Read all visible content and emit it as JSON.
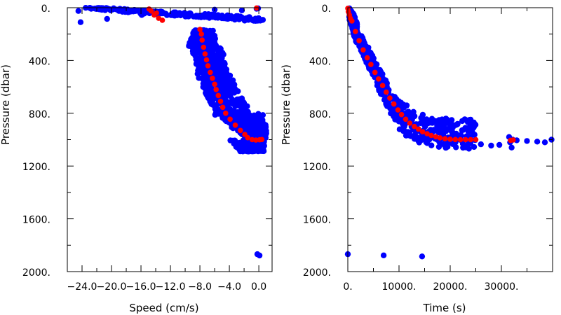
{
  "colors": {
    "blue": "#0000ff",
    "red": "#ff0000",
    "axis": "#000000"
  },
  "chart_data": [
    {
      "type": "scatter",
      "title": "",
      "xlabel": "Speed (cm/s)",
      "ylabel": "Pressure (dbar)",
      "xlim": [
        -26.0,
        1.8
      ],
      "ylim": [
        0,
        2000
      ],
      "y_reversed": true,
      "grid": false,
      "xticks": [
        -24,
        -20,
        -16,
        -12,
        -8,
        -4,
        0
      ],
      "xtick_labels": [
        "−24.0",
        "−20.0",
        "−16.0",
        "−12.0",
        "−8.0",
        "−4.0",
        "0.0"
      ],
      "yticks": [
        0,
        400,
        800,
        1200,
        1600,
        2000
      ],
      "ytick_labels": [
        "0.",
        "400.",
        "800.",
        "1200.",
        "1600.",
        "2000."
      ],
      "series": [
        {
          "color": "#0000ff",
          "bands": [
            {
              "y": [
                0,
                100
              ],
              "x_min": [
                -24.2,
                -21.5,
                -18.0,
                -15.0,
                -10.0,
                -5.0,
                -1.5
              ],
              "x_max": [
                -20.8,
                -16.5,
                -12.0,
                -6.0,
                -2.0,
                0.6,
                0.8
              ]
            },
            {
              "y": [
                170,
                300
              ],
              "x_min": [
                -8.8,
                -9.6
              ],
              "x_max": [
                -6.0,
                -5.8
              ]
            },
            {
              "y": [
                300,
                500
              ],
              "x_min": [
                -9.2,
                -8.6,
                -8.2
              ],
              "x_max": [
                -5.0,
                -4.6,
                -4.2
              ]
            },
            {
              "y": [
                500,
                800
              ],
              "x_min": [
                -8.4,
                -7.6,
                -6.8,
                -5.8
              ],
              "x_max": [
                -4.0,
                -3.0,
                -2.0,
                -1.0
              ]
            },
            {
              "y": [
                800,
                1000
              ],
              "x_min": [
                -6.2,
                -4.8,
                -3.0,
                -1.4
              ],
              "x_max": [
                0.8,
                0.9,
                1.0,
                1.1
              ]
            },
            {
              "y": [
                1000,
                1090
              ],
              "x_min": [
                -4.0,
                -2.5
              ],
              "x_max": [
                0.8,
                0.7
              ]
            }
          ],
          "points": [
            [
              -24.5,
              25
            ],
            [
              -24.2,
              110
            ],
            [
              -20.9,
              12
            ],
            [
              -20.6,
              85
            ],
            [
              -15.9,
              55
            ],
            [
              -11.4,
              60
            ],
            [
              -6.0,
              15
            ],
            [
              -2.3,
              20
            ],
            [
              -0.3,
              8
            ],
            [
              -0.1,
              5
            ],
            [
              -0.2,
              1868
            ],
            [
              0.1,
              1878
            ]
          ]
        },
        {
          "color": "#ff0000",
          "points": [
            [
              -0.3,
              2
            ],
            [
              -14.9,
              10
            ],
            [
              -14.6,
              25
            ],
            [
              -13.9,
              40
            ],
            [
              -14.2,
              55
            ],
            [
              -13.6,
              80
            ],
            [
              -13.1,
              95
            ],
            [
              -8.0,
              165
            ],
            [
              -7.8,
              200
            ],
            [
              -7.7,
              245
            ],
            [
              -7.5,
              300
            ],
            [
              -7.3,
              350
            ],
            [
              -7.1,
              395
            ],
            [
              -6.9,
              440
            ],
            [
              -6.6,
              490
            ],
            [
              -6.3,
              535
            ],
            [
              -6.0,
              580
            ],
            [
              -5.8,
              620
            ],
            [
              -5.5,
              665
            ],
            [
              -5.2,
              710
            ],
            [
              -4.9,
              755
            ],
            [
              -4.5,
              800
            ],
            [
              -3.9,
              845
            ],
            [
              -3.2,
              890
            ],
            [
              -2.5,
              930
            ],
            [
              -1.9,
              960
            ],
            [
              -1.5,
              985
            ],
            [
              -0.9,
              1000
            ],
            [
              -0.4,
              1003
            ],
            [
              0.1,
              1001
            ],
            [
              0.4,
              999
            ]
          ]
        }
      ]
    },
    {
      "type": "scatter",
      "title": "",
      "xlabel": "Time (s)",
      "ylabel": "Pressure (dbar)",
      "xlim": [
        0,
        40000
      ],
      "ylim": [
        0,
        2000
      ],
      "y_reversed": true,
      "grid": false,
      "xticks": [
        0,
        10000,
        20000,
        30000
      ],
      "xtick_labels": [
        "0.",
        "10000.",
        "20000.",
        "30000."
      ],
      "yticks": [
        0,
        400,
        800,
        1200,
        1600,
        2000
      ],
      "ytick_labels": [
        "0.",
        "400.",
        "800.",
        "1200.",
        "1600.",
        "2000."
      ],
      "series": [
        {
          "color": "#0000ff",
          "bands": [
            {
              "x": [
                200,
                1800
              ],
              "y_top": [
                0,
                20,
                60,
                120
              ],
              "y_bottom": [
                80,
                140,
                220,
                280
              ]
            },
            {
              "x": [
                1800,
                10000
              ],
              "y_top": [
                150,
                260,
                380,
                500,
                600,
                700
              ],
              "y_bottom": [
                260,
                400,
                540,
                680,
                800,
                900
              ]
            },
            {
              "x": [
                10000,
                25000
              ],
              "y_top": [
                700,
                800,
                840,
                840,
                840
              ],
              "y_bottom": [
                950,
                1020,
                1060,
                1070,
                1070
              ]
            }
          ],
          "points": [
            [
              0,
              1868
            ],
            [
              7000,
              1877
            ],
            [
              14500,
              1885
            ],
            [
              26000,
              1035
            ],
            [
              28000,
              1045
            ],
            [
              29600,
              1040
            ],
            [
              31500,
              980
            ],
            [
              31700,
              1020
            ],
            [
              32000,
              1060
            ],
            [
              32200,
              1000
            ],
            [
              33000,
              1005
            ],
            [
              35000,
              1010
            ],
            [
              37000,
              1015
            ],
            [
              38500,
              1020
            ],
            [
              39800,
              1000
            ]
          ]
        },
        {
          "color": "#ff0000",
          "points": [
            [
              0,
              5
            ],
            [
              100,
              30
            ],
            [
              300,
              55
            ],
            [
              500,
              80
            ],
            [
              800,
              100
            ],
            [
              1500,
              180
            ],
            [
              2200,
              250
            ],
            [
              3000,
              320
            ],
            [
              3800,
              380
            ],
            [
              4500,
              430
            ],
            [
              5300,
              490
            ],
            [
              6000,
              540
            ],
            [
              6800,
              590
            ],
            [
              7500,
              640
            ],
            [
              8200,
              685
            ],
            [
              9000,
              730
            ],
            [
              9800,
              775
            ],
            [
              10500,
              810
            ],
            [
              11300,
              845
            ],
            [
              12100,
              875
            ],
            [
              13000,
              900
            ],
            [
              13800,
              920
            ],
            [
              14600,
              940
            ],
            [
              15500,
              955
            ],
            [
              16300,
              968
            ],
            [
              17200,
              978
            ],
            [
              18000,
              986
            ],
            [
              19000,
              993
            ],
            [
              20000,
              997
            ],
            [
              21000,
              999
            ],
            [
              22000,
              1000
            ],
            [
              23000,
              1000
            ],
            [
              24000,
              1000
            ],
            [
              25000,
              1000
            ],
            [
              31800,
              1005
            ],
            [
              32300,
              1002
            ]
          ]
        }
      ]
    }
  ]
}
